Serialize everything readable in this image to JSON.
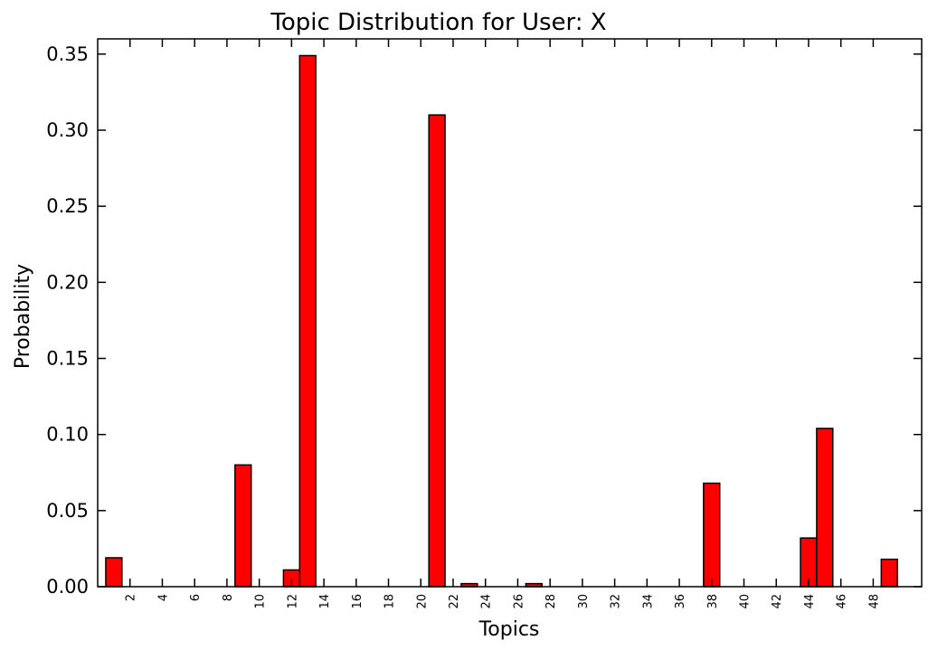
{
  "chart_data": {
    "type": "bar",
    "title": "Topic Distribution for User: X",
    "xlabel": "Topics",
    "ylabel": "Probability",
    "xlim": [
      0,
      51
    ],
    "ylim": [
      0,
      0.36
    ],
    "yticks": [
      "0.00",
      "0.05",
      "0.10",
      "0.15",
      "0.20",
      "0.25",
      "0.30",
      "0.35"
    ],
    "xticks": [
      "2",
      "4",
      "6",
      "8",
      "10",
      "12",
      "14",
      "16",
      "18",
      "20",
      "22",
      "24",
      "26",
      "28",
      "30",
      "32",
      "34",
      "36",
      "38",
      "40",
      "42",
      "44",
      "46",
      "48"
    ],
    "categories": [
      1,
      9,
      12,
      13,
      21,
      23,
      27,
      38,
      44,
      45,
      49
    ],
    "values": [
      0.019,
      0.08,
      0.011,
      0.349,
      0.31,
      0.002,
      0.002,
      0.068,
      0.032,
      0.104,
      0.018
    ],
    "bar_color": "#ff0000",
    "edge_color": "#000000",
    "grid": false,
    "legend": "none"
  }
}
